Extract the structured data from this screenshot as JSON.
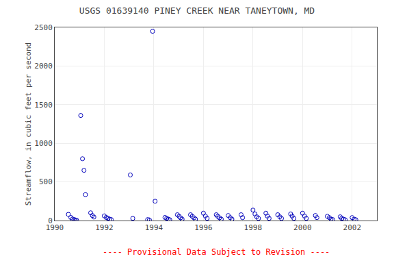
{
  "chart_data": {
    "type": "scatter",
    "title": "USGS 01639140 PINEY CREEK NEAR TANEYTOWN, MD",
    "ylabel": "Streamflow, in cubic feet per second",
    "annotations": [
      {
        "text": "---- Provisional Data Subject to Revision ----",
        "color": "red"
      }
    ],
    "x": [
      1990.55,
      1990.65,
      1990.72,
      1990.78,
      1990.83,
      1990.88,
      1991.05,
      1991.12,
      1991.18,
      1991.24,
      1991.45,
      1991.52,
      1991.58,
      1992.0,
      1992.08,
      1992.15,
      1992.22,
      1992.28,
      1993.05,
      1993.15,
      1993.75,
      1993.82,
      1993.95,
      1994.05,
      1994.45,
      1994.52,
      1994.58,
      1994.64,
      1994.95,
      1995.02,
      1995.08,
      1995.14,
      1995.48,
      1995.55,
      1995.62,
      1995.68,
      1996.0,
      1996.08,
      1996.15,
      1996.52,
      1996.58,
      1996.65,
      1996.72,
      1997.0,
      1997.08,
      1997.15,
      1997.52,
      1997.58,
      1998.0,
      1998.08,
      1998.15,
      1998.22,
      1998.52,
      1998.58,
      1998.65,
      1999.0,
      1999.08,
      1999.15,
      1999.52,
      1999.58,
      1999.65,
      2000.0,
      2000.08,
      2000.15,
      2000.52,
      2000.58,
      2001.0,
      2001.08,
      2001.15,
      2001.22,
      2001.52,
      2001.58,
      2001.65,
      2001.72,
      2002.0,
      2002.08,
      2002.15
    ],
    "values": [
      80,
      40,
      20,
      12,
      8,
      5,
      1360,
      800,
      650,
      335,
      100,
      65,
      45,
      60,
      40,
      28,
      18,
      12,
      590,
      28,
      12,
      8,
      2450,
      250,
      40,
      28,
      18,
      10,
      75,
      55,
      35,
      18,
      75,
      55,
      35,
      18,
      95,
      58,
      28,
      75,
      55,
      35,
      18,
      65,
      38,
      18,
      75,
      38,
      135,
      85,
      48,
      28,
      95,
      58,
      28,
      75,
      48,
      28,
      85,
      58,
      28,
      95,
      58,
      28,
      65,
      38,
      55,
      38,
      18,
      12,
      48,
      28,
      18,
      10,
      38,
      18,
      10
    ],
    "color": "#0000BB",
    "marker": "circle-open",
    "xlim": [
      1990,
      2003
    ],
    "ylim": [
      0,
      2500
    ],
    "xticks": [
      1990,
      1992,
      1994,
      1996,
      1998,
      2000,
      2002
    ],
    "yticks": [
      0,
      500,
      1000,
      1500,
      2000,
      2500
    ],
    "grid": true
  }
}
